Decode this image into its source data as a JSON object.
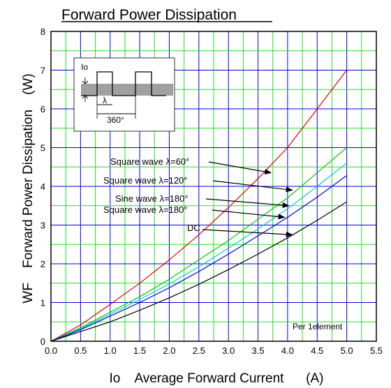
{
  "chart_data": {
    "type": "line",
    "title": "Forward Power Dissipation",
    "ylabel": "WF    Forward Power Dissipation    (W)",
    "xlabel": "Io    Average Forward Current      (A)",
    "xlim": [
      0,
      5.5
    ],
    "ylim": [
      0,
      8
    ],
    "xticks": [
      "0.0",
      "0.5",
      "1.0",
      "1.5",
      "2.0",
      "2.5",
      "3.0",
      "3.5",
      "4.0",
      "4.5",
      "5.0",
      "5.5"
    ],
    "yticks": [
      "0",
      "1",
      "2",
      "3",
      "4",
      "5",
      "6",
      "7",
      "8"
    ],
    "grid": true,
    "note": "Per 1element",
    "series": [
      {
        "name": "Square wave λ=60°",
        "color": "#e00000",
        "x": [
          0,
          0.5,
          1.0,
          1.5,
          2.0,
          2.5,
          3.0,
          3.5,
          4.0,
          4.5,
          5.0
        ],
        "y": [
          0,
          0.42,
          0.95,
          1.5,
          2.1,
          2.75,
          3.45,
          4.2,
          5.0,
          6.0,
          7.0
        ]
      },
      {
        "name": "Square wave λ=120°",
        "color": "#00cc00",
        "x": [
          0,
          0.5,
          1.0,
          1.5,
          2.0,
          2.5,
          3.0,
          3.5,
          4.0,
          4.5,
          5.0
        ],
        "y": [
          0,
          0.35,
          0.75,
          1.15,
          1.6,
          2.1,
          2.6,
          3.15,
          3.7,
          4.35,
          5.0
        ]
      },
      {
        "name": "Sine wave λ=180°",
        "color": "#00cccc",
        "x": [
          0,
          0.5,
          1.0,
          1.5,
          2.0,
          2.5,
          3.0,
          3.5,
          4.0,
          4.5,
          5.0
        ],
        "y": [
          0,
          0.32,
          0.7,
          1.08,
          1.48,
          1.92,
          2.4,
          2.9,
          3.42,
          4.0,
          4.6
        ]
      },
      {
        "name": "Square wave λ=180°",
        "color": "#0000e0",
        "x": [
          0,
          0.5,
          1.0,
          1.5,
          2.0,
          2.5,
          3.0,
          3.5,
          4.0,
          4.5,
          5.0
        ],
        "y": [
          0,
          0.3,
          0.65,
          1.0,
          1.38,
          1.8,
          2.25,
          2.72,
          3.2,
          3.72,
          4.28
        ]
      },
      {
        "name": "DC",
        "color": "#000000",
        "x": [
          0,
          0.5,
          1.0,
          1.5,
          2.0,
          2.5,
          3.0,
          3.5,
          4.0,
          4.5,
          5.0
        ],
        "y": [
          0,
          0.25,
          0.5,
          0.8,
          1.12,
          1.47,
          1.85,
          2.25,
          2.67,
          3.12,
          3.6
        ]
      }
    ],
    "annotations": [
      {
        "text": "Square wave  λ=60°",
        "target": [
          3.72,
          4.35
        ]
      },
      {
        "text": "Square wave  λ=120°",
        "target": [
          4.08,
          3.9
        ]
      },
      {
        "text": "Sine wave  λ=180°",
        "target": [
          4.02,
          3.5
        ]
      },
      {
        "text": "Square wave  λ=180°",
        "target": [
          3.95,
          3.2
        ]
      },
      {
        "text": "DC",
        "target": [
          4.08,
          2.75
        ]
      }
    ],
    "inset": {
      "io_label": "Io",
      "lambda_label": "λ",
      "period_label": "360°"
    }
  }
}
